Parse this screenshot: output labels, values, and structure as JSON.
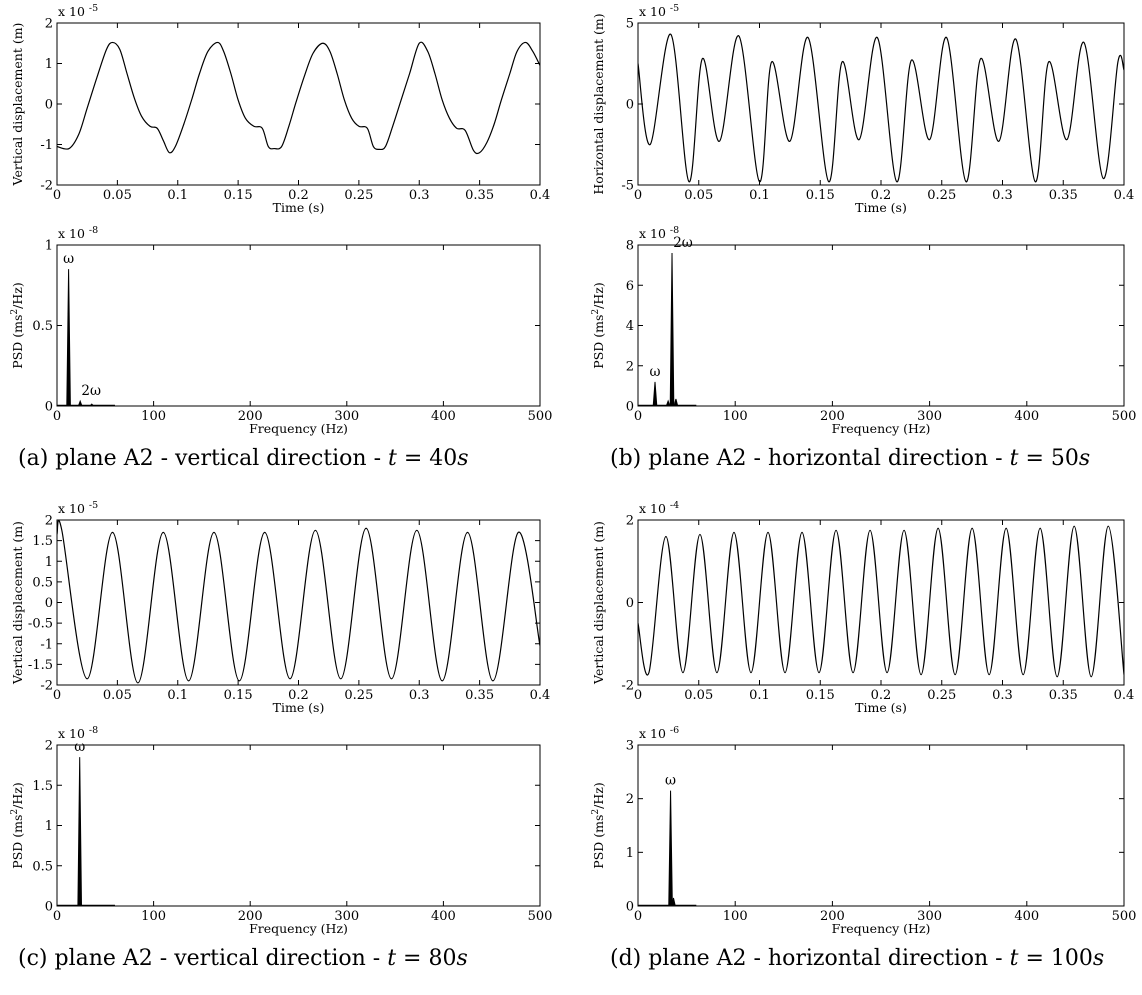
{
  "chart_data": [
    {
      "panel": "a",
      "type": "line",
      "caption": {
        "prefix": "(a) plane A2 - vertical direction - ",
        "var": "t",
        "eq": " = ",
        "val": "40",
        "unit": "s"
      },
      "xlabel": "Time (s)",
      "ylabel": "Vertical displacement (m)",
      "multiplier": "x 10",
      "exponent": "-5",
      "xlim": [
        0,
        0.4
      ],
      "ylim": [
        -2,
        2
      ],
      "xticks": [
        0,
        0.05,
        0.1,
        0.15,
        0.2,
        0.25,
        0.3,
        0.35,
        0.4
      ],
      "yticks": [
        -2,
        -1,
        0,
        1,
        2
      ],
      "x": [
        0,
        0.01,
        0.018,
        0.025,
        0.033,
        0.041,
        0.046,
        0.052,
        0.058,
        0.064,
        0.07,
        0.077,
        0.083,
        0.088,
        0.093,
        0.098,
        0.105,
        0.112,
        0.118,
        0.125,
        0.133,
        0.138,
        0.144,
        0.15,
        0.156,
        0.163,
        0.17,
        0.175,
        0.18,
        0.186,
        0.192,
        0.198,
        0.205,
        0.212,
        0.22,
        0.226,
        0.232,
        0.238,
        0.244,
        0.25,
        0.257,
        0.262,
        0.267,
        0.272,
        0.278,
        0.285,
        0.292,
        0.3,
        0.307,
        0.313,
        0.319,
        0.325,
        0.331,
        0.338,
        0.345,
        0.35,
        0.356,
        0.362,
        0.368,
        0.375,
        0.381,
        0.388,
        0.394,
        0.4
      ],
      "y": [
        -1.05,
        -1.1,
        -0.75,
        -0.1,
        0.65,
        1.35,
        1.52,
        1.35,
        0.75,
        0.15,
        -0.3,
        -0.55,
        -0.6,
        -0.9,
        -1.2,
        -1.05,
        -0.5,
        0.15,
        0.75,
        1.3,
        1.52,
        1.3,
        0.75,
        0.1,
        -0.35,
        -0.55,
        -0.6,
        -1.05,
        -1.1,
        -1.05,
        -0.55,
        0.05,
        0.7,
        1.25,
        1.5,
        1.3,
        0.75,
        0.1,
        -0.35,
        -0.55,
        -0.6,
        -1.05,
        -1.12,
        -1.05,
        -0.55,
        0.1,
        0.75,
        1.5,
        1.3,
        0.75,
        0.1,
        -0.35,
        -0.6,
        -0.65,
        -1.15,
        -1.2,
        -0.95,
        -0.5,
        0.1,
        0.75,
        1.3,
        1.52,
        1.3,
        0.95
      ],
      "psd": {
        "xlabel": "Frequency (Hz)",
        "ylabel_pre": "PSD (ms",
        "ylabel_sup": "2",
        "ylabel_post": "/Hz)",
        "multiplier": "x 10",
        "exponent": "-8",
        "xlim": [
          0,
          500
        ],
        "ylim": [
          0,
          1
        ],
        "xticks": [
          0,
          100,
          200,
          300,
          400,
          500
        ],
        "yticks": [
          0,
          0.5,
          1
        ],
        "peaks": [
          {
            "f": 12,
            "v": 0.85,
            "label": "ω"
          },
          {
            "f": 24,
            "v": 0.03,
            "label": "2ω"
          },
          {
            "f": 36,
            "v": 0.012,
            "label": ""
          }
        ]
      }
    },
    {
      "panel": "b",
      "type": "line",
      "caption": {
        "prefix": "(b) plane A2 - horizontal direction - ",
        "var": "t",
        "eq": " = ",
        "val": "50",
        "unit": "s"
      },
      "xlabel": "Time (s)",
      "ylabel": "Horizontal displacement (m)",
      "multiplier": "x 10",
      "exponent": "-5",
      "xlim": [
        0,
        0.4
      ],
      "ylim": [
        -5,
        5
      ],
      "xticks": [
        0,
        0.05,
        0.1,
        0.15,
        0.2,
        0.25,
        0.3,
        0.35,
        0.4
      ],
      "yticks": [
        -5,
        0,
        5
      ],
      "x": [
        0,
        0.01,
        0.027,
        0.042,
        0.053,
        0.067,
        0.083,
        0.1,
        0.11,
        0.125,
        0.14,
        0.157,
        0.168,
        0.182,
        0.197,
        0.213,
        0.225,
        0.24,
        0.254,
        0.27,
        0.282,
        0.297,
        0.311,
        0.327,
        0.338,
        0.353,
        0.367,
        0.383,
        0.395,
        0.4
      ],
      "y": [
        2.5,
        -2.5,
        4.3,
        -4.8,
        2.8,
        -2.3,
        4.2,
        -4.8,
        2.6,
        -2.3,
        4.1,
        -4.8,
        2.6,
        -2.2,
        4.1,
        -4.8,
        2.7,
        -2.2,
        4.1,
        -4.8,
        2.8,
        -2.3,
        4.0,
        -4.8,
        2.6,
        -2.2,
        3.8,
        -4.6,
        2.6,
        2.1
      ],
      "psd": {
        "xlabel": "Frequency (Hz)",
        "ylabel_pre": "PSD (ms",
        "ylabel_sup": "2",
        "ylabel_post": "/Hz)",
        "multiplier": "x 10",
        "exponent": "-8",
        "xlim": [
          0,
          500
        ],
        "ylim": [
          0,
          8
        ],
        "xticks": [
          0,
          100,
          200,
          300,
          400,
          500
        ],
        "yticks": [
          0,
          2,
          4,
          6,
          8
        ],
        "peaks": [
          {
            "f": 17.5,
            "v": 1.2,
            "label": "ω"
          },
          {
            "f": 35,
            "v": 7.6,
            "label": "2ω"
          },
          {
            "f": 31,
            "v": 0.25,
            "label": ""
          },
          {
            "f": 39,
            "v": 0.35,
            "label": ""
          }
        ]
      }
    },
    {
      "panel": "c",
      "type": "line",
      "caption": {
        "prefix": "(c) plane A2 - vertical direction - ",
        "var": "t",
        "eq": " = ",
        "val": "80",
        "unit": "s"
      },
      "xlabel": "Time (s)",
      "ylabel": "Vertical displacement (m)",
      "multiplier": "x 10",
      "exponent": "-5",
      "xlim": [
        0,
        0.4
      ],
      "ylim": [
        -2,
        2
      ],
      "xticks": [
        0,
        0.05,
        0.1,
        0.15,
        0.2,
        0.25,
        0.3,
        0.35,
        0.4
      ],
      "yticks": [
        -2,
        -1.5,
        -1,
        -0.5,
        0,
        0.5,
        1,
        1.5,
        2
      ],
      "x": [
        0,
        0.004,
        0.025,
        0.046,
        0.067,
        0.088,
        0.109,
        0.13,
        0.151,
        0.172,
        0.193,
        0.214,
        0.235,
        0.256,
        0.277,
        0.298,
        0.319,
        0.34,
        0.361,
        0.382,
        0.4
      ],
      "y": [
        1.65,
        1.75,
        -1.85,
        1.7,
        -1.95,
        1.7,
        -1.9,
        1.7,
        -1.9,
        1.7,
        -1.85,
        1.75,
        -1.85,
        1.8,
        -1.85,
        1.75,
        -1.9,
        1.7,
        -1.9,
        1.7,
        -1.05
      ],
      "psd": {
        "xlabel": "Frequency (Hz)",
        "ylabel_pre": "PSD (ms",
        "ylabel_sup": "2",
        "ylabel_post": "/Hz)",
        "multiplier": "x 10",
        "exponent": "-8",
        "xlim": [
          0,
          500
        ],
        "ylim": [
          0,
          2
        ],
        "xticks": [
          0,
          100,
          200,
          300,
          400,
          500
        ],
        "yticks": [
          0,
          0.5,
          1,
          1.5,
          2
        ],
        "peaks": [
          {
            "f": 23.5,
            "v": 1.85,
            "label": "ω"
          }
        ]
      }
    },
    {
      "panel": "d",
      "type": "line",
      "caption": {
        "prefix": "(d) plane A2 - horizontal direction - ",
        "var": "t",
        "eq": " = ",
        "val": "100",
        "unit": "s"
      },
      "xlabel": "Time (s)",
      "ylabel": "Vertical displacement (m)",
      "multiplier": "x 10",
      "exponent": "-4",
      "xlim": [
        0,
        0.4
      ],
      "ylim": [
        -2,
        2
      ],
      "xticks": [
        0,
        0.05,
        0.1,
        0.15,
        0.2,
        0.25,
        0.3,
        0.35,
        0.4
      ],
      "yticks": [
        -2,
        0,
        2
      ],
      "x": [
        0,
        0.009,
        0.023,
        0.037,
        0.051,
        0.065,
        0.079,
        0.093,
        0.107,
        0.121,
        0.135,
        0.149,
        0.163,
        0.177,
        0.191,
        0.205,
        0.219,
        0.233,
        0.247,
        0.261,
        0.275,
        0.289,
        0.303,
        0.317,
        0.331,
        0.345,
        0.359,
        0.373,
        0.387,
        0.4
      ],
      "y": [
        -0.5,
        -1.7,
        1.6,
        -1.7,
        1.65,
        -1.7,
        1.7,
        -1.7,
        1.7,
        -1.7,
        1.7,
        -1.7,
        1.75,
        -1.7,
        1.75,
        -1.7,
        1.75,
        -1.75,
        1.8,
        -1.75,
        1.8,
        -1.75,
        1.8,
        -1.75,
        1.8,
        -1.8,
        1.85,
        -1.8,
        1.85,
        -1.75
      ],
      "psd": {
        "xlabel": "Frequency (Hz)",
        "ylabel_pre": "PSD (ms",
        "ylabel_sup": "2",
        "ylabel_post": "/Hz)",
        "multiplier": "x 10",
        "exponent": "-6",
        "xlim": [
          0,
          500
        ],
        "ylim": [
          0,
          3
        ],
        "xticks": [
          0,
          100,
          200,
          300,
          400,
          500
        ],
        "yticks": [
          0,
          1,
          2,
          3
        ],
        "peaks": [
          {
            "f": 33.5,
            "v": 2.15,
            "label": "ω"
          },
          {
            "f": 36.5,
            "v": 0.15,
            "label": ""
          }
        ]
      }
    }
  ]
}
